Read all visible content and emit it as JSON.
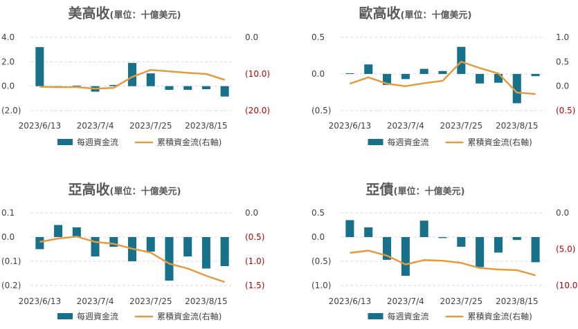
{
  "colors": {
    "bar": "#17718A",
    "line": "#E69A3C",
    "axis_text": "#404040",
    "negative_text": "#C00000",
    "grid": "#D9D9D9"
  },
  "chart_data": [
    {
      "type": "bar+line",
      "title": "美高收",
      "subtitle": "(單位：十億美元)",
      "x_tick_labels": [
        "2023/6/13",
        "2023/7/4",
        "2023/7/25",
        "2023/8/15"
      ],
      "left_axis": {
        "ticks": [
          "4.0",
          "2.0",
          "0.0",
          "(2.0)"
        ],
        "ylim": [
          -2,
          4
        ]
      },
      "right_axis": {
        "ticks": [
          "0.0",
          "(10.0)",
          "(20.0)"
        ],
        "ylim": [
          -20,
          0
        ]
      },
      "series": [
        {
          "name": "每週資金流",
          "type": "bar",
          "values": [
            3.2,
            -0.1,
            0.05,
            -0.45,
            0.1,
            1.9,
            1.05,
            -0.3,
            -0.3,
            -0.25,
            -0.85
          ]
        },
        {
          "name": "累積資金流(右軸)",
          "type": "line",
          "values": [
            -13.5,
            -13.6,
            -13.6,
            -14.0,
            -13.8,
            -10.8,
            -8.9,
            -9.3,
            -9.7,
            -10.0,
            -11.6
          ]
        }
      ],
      "legend": "bottom"
    },
    {
      "type": "bar+line",
      "title": "歐高收",
      "subtitle": "(單位：十億美元)",
      "x_tick_labels": [
        "2023/6/13",
        "2023/7/4",
        "2023/7/25",
        "2023/8/15"
      ],
      "left_axis": {
        "ticks": [
          "0.5",
          "0.0",
          "(0.5)"
        ],
        "ylim": [
          -0.5,
          0.5
        ]
      },
      "right_axis": {
        "ticks": [
          "1.0",
          "0.5",
          "0.0",
          "(0.5)"
        ],
        "ylim": [
          -0.5,
          1.0
        ]
      },
      "series": [
        {
          "name": "每週資金流",
          "type": "bar",
          "values": [
            0.01,
            0.13,
            -0.15,
            -0.07,
            0.07,
            0.04,
            0.37,
            -0.13,
            -0.12,
            -0.4,
            -0.03
          ]
        },
        {
          "name": "累積資金流(右軸)",
          "type": "line",
          "values": [
            0.05,
            0.18,
            0.05,
            0.0,
            0.06,
            0.11,
            0.5,
            0.37,
            0.26,
            -0.13,
            -0.16
          ]
        }
      ],
      "legend": "bottom"
    },
    {
      "type": "bar+line",
      "title": "亞高收",
      "subtitle": "(單位：十億美元)",
      "x_tick_labels": [
        "2023/6/13",
        "2023/7/4",
        "2023/7/25",
        "2023/8/15"
      ],
      "left_axis": {
        "ticks": [
          "0.1",
          "0.0",
          "(0.1)",
          "(0.2)"
        ],
        "ylim": [
          -0.2,
          0.1
        ]
      },
      "right_axis": {
        "ticks": [
          "0.0",
          "(0.5)",
          "(1.0)",
          "(1.5)"
        ],
        "ylim": [
          -1.5,
          0
        ]
      },
      "series": [
        {
          "name": "每週資金流",
          "type": "bar",
          "values": [
            -0.05,
            0.05,
            0.04,
            -0.08,
            -0.04,
            -0.1,
            -0.06,
            -0.18,
            -0.08,
            -0.13,
            -0.12
          ]
        },
        {
          "name": "累積資金流(右軸)",
          "type": "line",
          "values": [
            -0.6,
            -0.53,
            -0.49,
            -0.6,
            -0.64,
            -0.74,
            -0.82,
            -1.05,
            -1.15,
            -1.3,
            -1.43
          ]
        }
      ],
      "legend": "bottom"
    },
    {
      "type": "bar+line",
      "title": "亞債",
      "subtitle": "(單位：十億美元)",
      "x_tick_labels": [
        "2023/6/13",
        "2023/7/4",
        "2023/7/25",
        "2023/8/15"
      ],
      "left_axis": {
        "ticks": [
          "0.5",
          "0.0",
          "(0.5)",
          "(1.0)"
        ],
        "ylim": [
          -1.0,
          0.5
        ]
      },
      "right_axis": {
        "ticks": [
          "0.0",
          "(5.0)",
          "(10.0)"
        ],
        "ylim": [
          -10,
          0
        ]
      },
      "series": [
        {
          "name": "每週資金流",
          "type": "bar",
          "values": [
            0.35,
            0.2,
            -0.47,
            -0.8,
            0.34,
            -0.02,
            -0.2,
            -0.62,
            -0.32,
            -0.06,
            -0.52
          ]
        },
        {
          "name": "累積資金流(右軸)",
          "type": "line",
          "values": [
            -5.5,
            -5.2,
            -5.9,
            -7.1,
            -6.5,
            -6.6,
            -6.9,
            -7.6,
            -7.8,
            -7.9,
            -8.6
          ]
        }
      ],
      "legend": "bottom"
    }
  ]
}
